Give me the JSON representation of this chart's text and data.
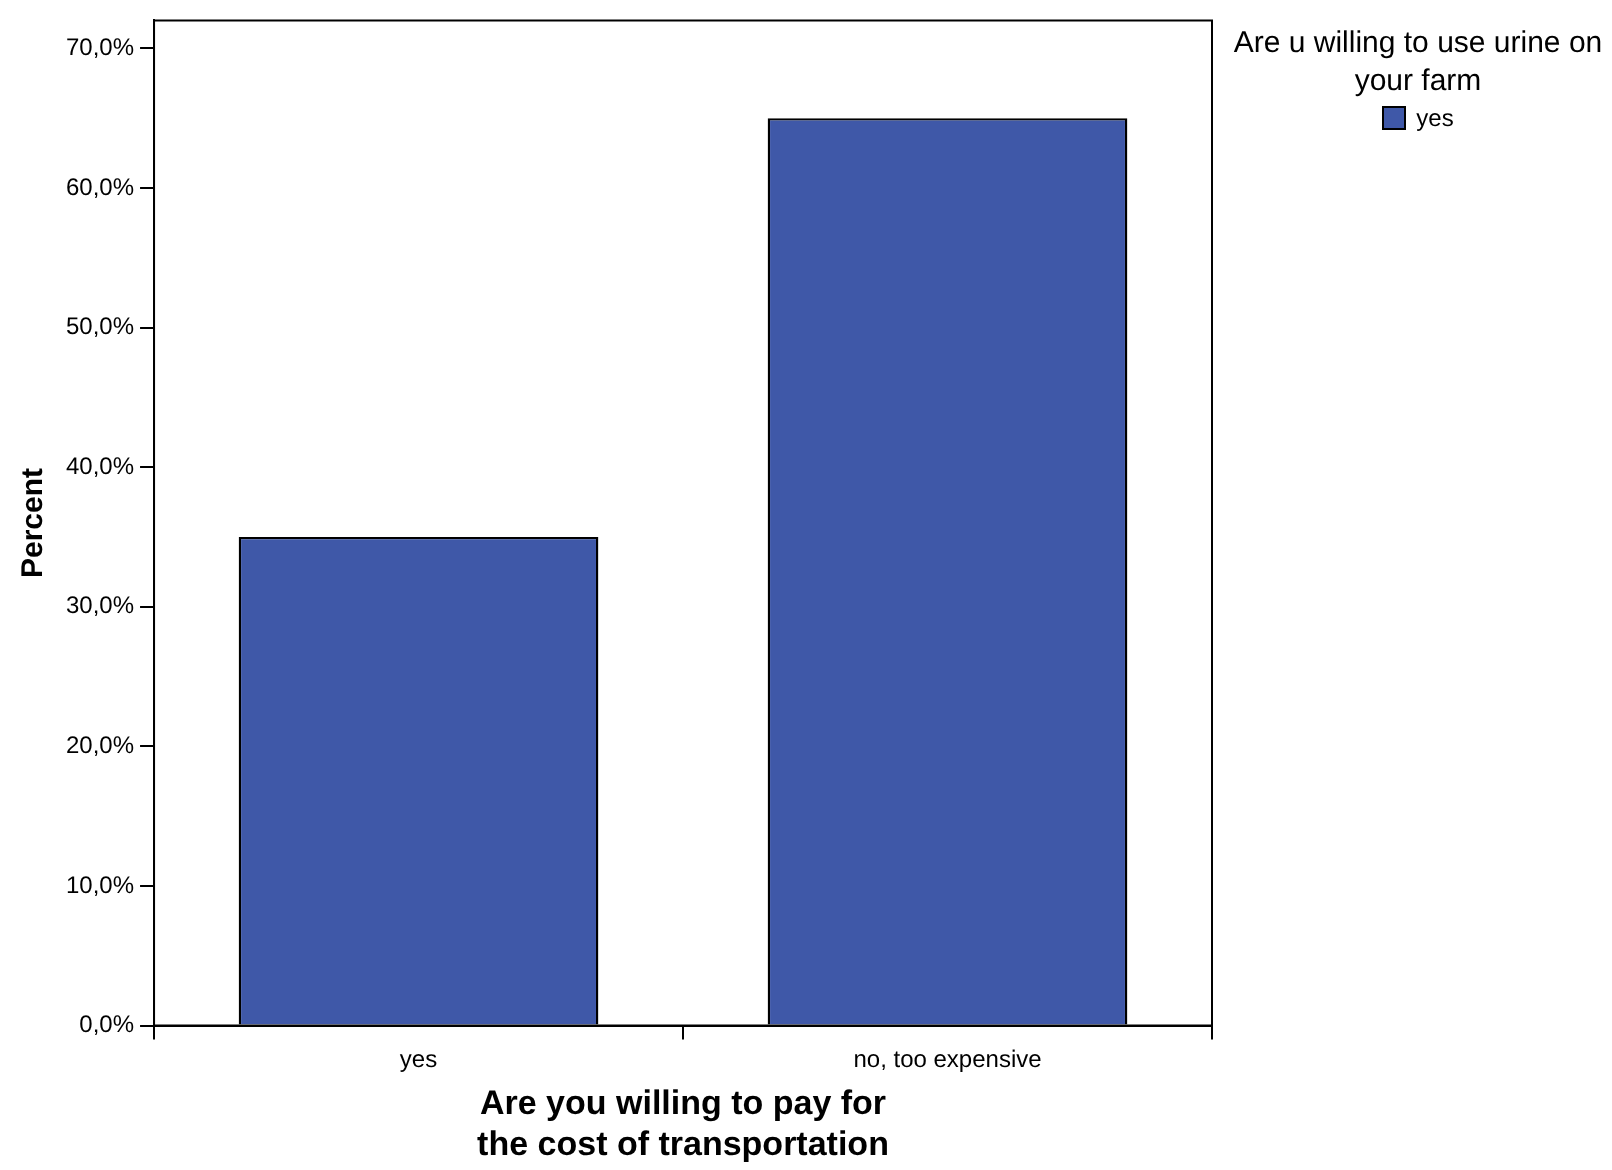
{
  "chart_data": {
    "type": "bar",
    "categories": [
      "yes",
      "no, too expensive"
    ],
    "series": [
      {
        "name": "yes",
        "color": "#3f58a8",
        "values": [
          35,
          65
        ]
      }
    ],
    "xlabel": "Are you willing to pay for the cost of transportation",
    "ylabel": "Percent",
    "legend_title": "Are u willing to use urine on your farm",
    "legend": "top right",
    "grid": false,
    "ylim": [
      0,
      72
    ],
    "yticks": [
      {
        "value": 0,
        "label": "0,0%"
      },
      {
        "value": 10,
        "label": "10,0%"
      },
      {
        "value": 20,
        "label": "20,0%"
      },
      {
        "value": 30,
        "label": "30,0%"
      },
      {
        "value": 40,
        "label": "40,0%"
      },
      {
        "value": 50,
        "label": "50,0%"
      },
      {
        "value": 60,
        "label": "60,0%"
      },
      {
        "value": 70,
        "label": "70,0%"
      }
    ]
  }
}
